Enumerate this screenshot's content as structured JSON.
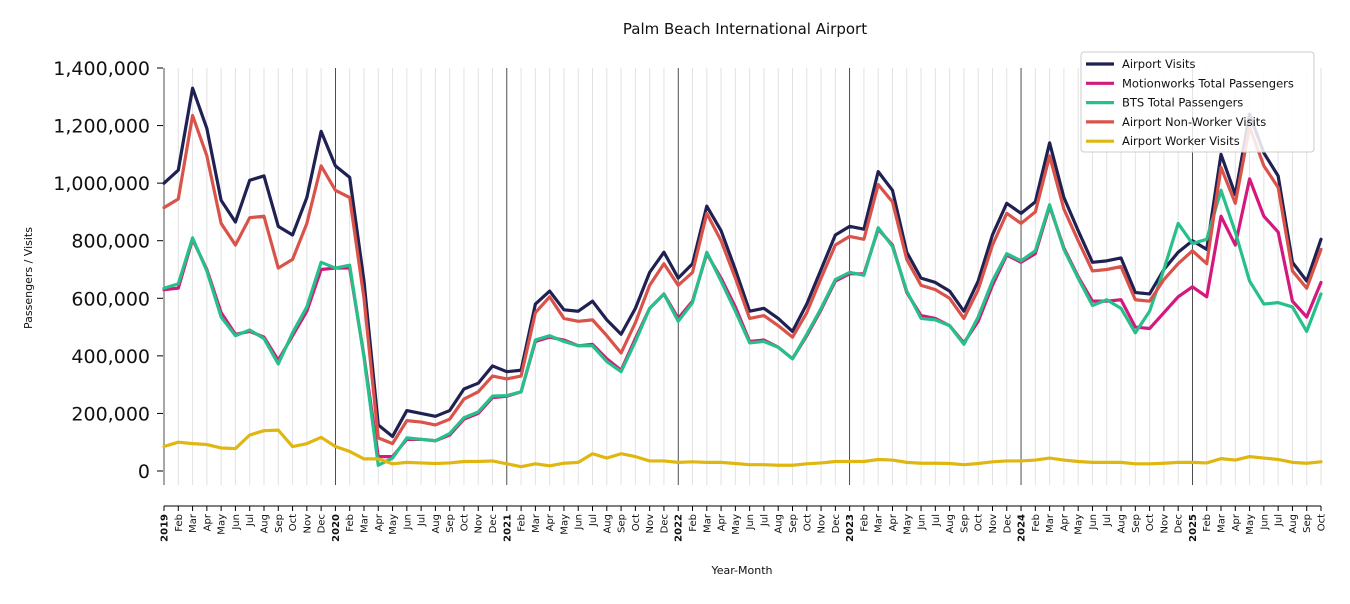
{
  "chart_data": {
    "type": "line",
    "title": "Palm Beach International Airport",
    "xlabel": "Year-Month",
    "ylabel": "Passengers / Visits",
    "ylim": [
      0,
      1400000
    ],
    "yticks": [
      0,
      200000,
      400000,
      600000,
      800000,
      1000000,
      1200000,
      1400000
    ],
    "ytick_labels": [
      "0",
      "200,000",
      "400,000",
      "600,000",
      "800,000",
      "1,000,000",
      "1,200,000",
      "1,400,000"
    ],
    "grid": "vertical lines at each month; darker lines at each January",
    "legend_position": "top-right",
    "x": [
      "2019",
      "Feb",
      "Mar",
      "Apr",
      "May",
      "Jun",
      "Jul",
      "Aug",
      "Sep",
      "Oct",
      "Nov",
      "Dec",
      "2020",
      "Feb",
      "Mar",
      "Apr",
      "May",
      "Jun",
      "Jul",
      "Aug",
      "Sep",
      "Oct",
      "Nov",
      "Dec",
      "2021",
      "Feb",
      "Mar",
      "Apr",
      "May",
      "Jun",
      "Jul",
      "Aug",
      "Sep",
      "Oct",
      "Nov",
      "Dec",
      "2022",
      "Feb",
      "Mar",
      "Apr",
      "May",
      "Jun",
      "Jul",
      "Aug",
      "Sep",
      "Oct",
      "Nov",
      "Dec",
      "2023",
      "Feb",
      "Mar",
      "Apr",
      "May",
      "Jun",
      "Jul",
      "Aug",
      "Sep",
      "Oct",
      "Nov",
      "Dec",
      "2024",
      "Feb",
      "Mar",
      "Apr",
      "May",
      "Jun",
      "Jul",
      "Aug",
      "Sep",
      "Oct",
      "Nov",
      "Dec",
      "2025",
      "Feb",
      "Mar",
      "Apr",
      "May",
      "Jun",
      "Jul",
      "Aug",
      "Sep",
      "Oct"
    ],
    "series": [
      {
        "name": "Airport Visits",
        "color": "#1f2152",
        "values": [
          1000000,
          1045000,
          1330000,
          1190000,
          940000,
          865000,
          1010000,
          1025000,
          850000,
          820000,
          950000,
          1180000,
          1060000,
          1020000,
          660000,
          160000,
          120000,
          210000,
          200000,
          190000,
          210000,
          285000,
          305000,
          365000,
          345000,
          350000,
          580000,
          625000,
          560000,
          555000,
          590000,
          525000,
          475000,
          565000,
          690000,
          760000,
          670000,
          720000,
          920000,
          835000,
          700000,
          555000,
          565000,
          530000,
          485000,
          580000,
          700000,
          820000,
          850000,
          840000,
          1040000,
          975000,
          760000,
          670000,
          655000,
          625000,
          555000,
          660000,
          820000,
          930000,
          895000,
          935000,
          1140000,
          950000,
          835000,
          725000,
          730000,
          740000,
          620000,
          615000,
          700000,
          760000,
          800000,
          770000,
          1100000,
          960000,
          1240000,
          1105000,
          1025000,
          725000,
          660000,
          805000
        ]
      },
      {
        "name": "Motionworks Total Passengers",
        "color": "#d4197e",
        "values": [
          630000,
          635000,
          805000,
          700000,
          550000,
          475000,
          485000,
          465000,
          385000,
          470000,
          555000,
          700000,
          705000,
          705000,
          400000,
          50000,
          50000,
          110000,
          110000,
          105000,
          125000,
          180000,
          200000,
          255000,
          260000,
          275000,
          450000,
          465000,
          455000,
          435000,
          440000,
          390000,
          350000,
          460000,
          565000,
          615000,
          530000,
          590000,
          755000,
          670000,
          570000,
          450000,
          455000,
          430000,
          390000,
          470000,
          560000,
          660000,
          685000,
          685000,
          840000,
          785000,
          620000,
          540000,
          530000,
          505000,
          445000,
          520000,
          645000,
          750000,
          725000,
          755000,
          920000,
          775000,
          675000,
          590000,
          590000,
          595000,
          500000,
          495000,
          550000,
          605000,
          640000,
          605000,
          885000,
          785000,
          1015000,
          885000,
          830000,
          590000,
          535000,
          655000
        ]
      },
      {
        "name": "BTS Total Passengers",
        "color": "#27c08a",
        "values": [
          635000,
          650000,
          810000,
          695000,
          535000,
          470000,
          490000,
          460000,
          372000,
          480000,
          570000,
          725000,
          705000,
          715000,
          395000,
          20000,
          45000,
          115000,
          110000,
          105000,
          130000,
          185000,
          205000,
          260000,
          262000,
          275000,
          455000,
          470000,
          450000,
          435000,
          435000,
          380000,
          345000,
          450000,
          565000,
          615000,
          520000,
          585000,
          760000,
          660000,
          555000,
          445000,
          450000,
          430000,
          390000,
          475000,
          565000,
          665000,
          690000,
          680000,
          845000,
          780000,
          625000,
          530000,
          525000,
          505000,
          440000,
          535000,
          660000,
          755000,
          730000,
          765000,
          925000,
          770000,
          670000,
          575000,
          595000,
          565000,
          480000,
          555000,
          700000,
          860000,
          790000,
          805000,
          975000,
          830000,
          660000,
          580000,
          585000,
          570000,
          485000,
          615000
        ]
      },
      {
        "name": "Airport Non-Worker Visits",
        "color": "#d9534a",
        "values": [
          915000,
          945000,
          1235000,
          1095000,
          860000,
          785000,
          880000,
          885000,
          705000,
          735000,
          860000,
          1060000,
          975000,
          950000,
          600000,
          115000,
          95000,
          175000,
          170000,
          160000,
          180000,
          250000,
          275000,
          330000,
          320000,
          330000,
          550000,
          605000,
          530000,
          520000,
          525000,
          470000,
          410000,
          515000,
          645000,
          720000,
          645000,
          690000,
          895000,
          800000,
          670000,
          530000,
          540000,
          505000,
          465000,
          550000,
          670000,
          785000,
          815000,
          805000,
          995000,
          935000,
          735000,
          645000,
          630000,
          600000,
          530000,
          630000,
          785000,
          895000,
          860000,
          900000,
          1095000,
          910000,
          800000,
          695000,
          700000,
          710000,
          595000,
          590000,
          665000,
          720000,
          765000,
          720000,
          1055000,
          930000,
          1195000,
          1060000,
          985000,
          695000,
          635000,
          770000
        ]
      },
      {
        "name": "Airport Worker Visits",
        "color": "#e0b711",
        "values": [
          85000,
          100000,
          95000,
          92000,
          80000,
          78000,
          125000,
          140000,
          142000,
          85000,
          95000,
          117000,
          85000,
          68000,
          42000,
          42000,
          25000,
          30000,
          28000,
          26000,
          28000,
          33000,
          33000,
          35000,
          25000,
          15000,
          25000,
          18000,
          27000,
          30000,
          60000,
          45000,
          60000,
          50000,
          35000,
          35000,
          30000,
          32000,
          30000,
          30000,
          26000,
          22000,
          22000,
          20000,
          20000,
          25000,
          28000,
          33000,
          33000,
          33000,
          40000,
          38000,
          30000,
          27000,
          27000,
          26000,
          22000,
          26000,
          32000,
          35000,
          35000,
          38000,
          45000,
          38000,
          33000,
          30000,
          30000,
          30000,
          25000,
          25000,
          27000,
          30000,
          30000,
          28000,
          43000,
          38000,
          50000,
          45000,
          40000,
          30000,
          27000,
          32000
        ]
      }
    ]
  }
}
